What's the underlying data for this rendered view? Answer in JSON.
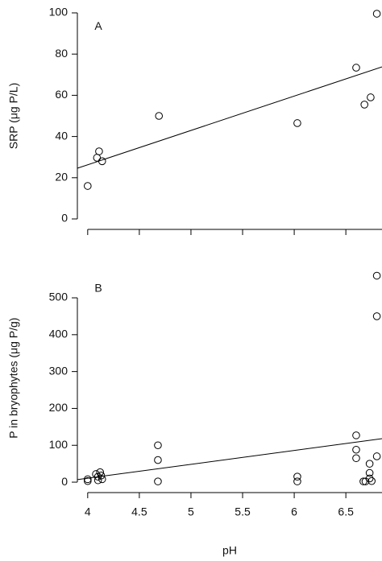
{
  "chart_data": [
    {
      "type": "scatter",
      "annotation": "A",
      "ylabel": "SRP (μg P/L)",
      "xlim": [
        3.9,
        6.85
      ],
      "xticks": [
        4.0,
        4.5,
        5.0,
        5.5,
        6.0,
        6.5
      ],
      "xticklabels": false,
      "ylim": [
        -5,
        105
      ],
      "yticks": [
        0,
        20,
        40,
        60,
        80,
        100
      ],
      "series": [
        {
          "style": "marker",
          "x": [
            4.0,
            4.09,
            4.11,
            4.14,
            4.69,
            6.03,
            6.6,
            6.68,
            6.74,
            6.8
          ],
          "values": [
            16,
            29.7,
            32.8,
            28,
            50,
            46.5,
            73.4,
            55.5,
            59,
            99.6
          ]
        },
        {
          "style": "line",
          "x": [
            3.9,
            6.85
          ],
          "values": [
            24.6,
            73.8
          ]
        }
      ]
    },
    {
      "type": "scatter",
      "annotation": "B",
      "ylabel": "P in bryophytes (μg P/g)",
      "xlabel": "pH",
      "xlim": [
        3.9,
        6.85
      ],
      "xticks": [
        4.0,
        4.5,
        5.0,
        5.5,
        6.0,
        6.5
      ],
      "xticklabels": true,
      "ylim": [
        -25,
        590
      ],
      "yticks": [
        0,
        100,
        200,
        300,
        400,
        500
      ],
      "series": [
        {
          "style": "marker",
          "x": [
            4.0,
            4.0,
            4.08,
            4.1,
            4.1,
            4.12,
            4.13,
            4.14,
            4.68,
            4.68,
            4.68,
            6.03,
            6.03,
            6.6,
            6.6,
            6.6,
            6.67,
            6.69,
            6.73,
            6.73,
            6.73,
            6.75,
            6.8,
            6.8,
            6.8
          ],
          "values": [
            8,
            3,
            22,
            15,
            5,
            27,
            18,
            8,
            100,
            60,
            2,
            15,
            2,
            127,
            88,
            65,
            2,
            2,
            50,
            25,
            10,
            3,
            560,
            450,
            70
          ]
        },
        {
          "style": "line",
          "x": [
            3.9,
            6.85
          ],
          "values": [
            7,
            118
          ]
        }
      ]
    }
  ]
}
